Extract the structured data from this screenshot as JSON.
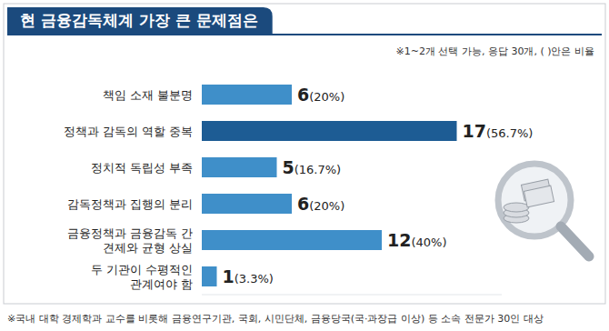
{
  "chart_data": {
    "type": "bar",
    "title": "현 금융감독체계 가장 큰 문제점은",
    "subtitle": "※1~2개 선택 가능, 응답 30개, ( )안은 비율",
    "annotations": [
      "※국내 대학 경제학과 교수를 비롯해 금융연구기관, 국회, 시민단체, 금융당국(국·과장급 이상) 등 소속 전문가 30인 대상"
    ],
    "orientation": "horizontal",
    "categories": [
      "책임 소재 불분명",
      "정책과 감독의 역할 중복",
      "정치적 독립성 부족",
      "감독정책과 집행의 분리",
      "금융정책과 금융감독 간 견제와 균형 상실",
      "두 기관이 수평적인 관계여야 함"
    ],
    "values": [
      6,
      17,
      5,
      6,
      12,
      1
    ],
    "value_labels": [
      "6(20%)",
      "17(56.7%)",
      "5(16.7%)",
      "6(20%)",
      "12(40%)",
      "1(3.3%)"
    ],
    "colors": [
      "#3f8fc9",
      "#1d5c94",
      "#3f8fc9",
      "#3f8fc9",
      "#3f8fc9",
      "#3f8fc9"
    ],
    "xlim": [
      0,
      20
    ],
    "data_labels": true,
    "tick_labels": false,
    "grid": false
  }
}
